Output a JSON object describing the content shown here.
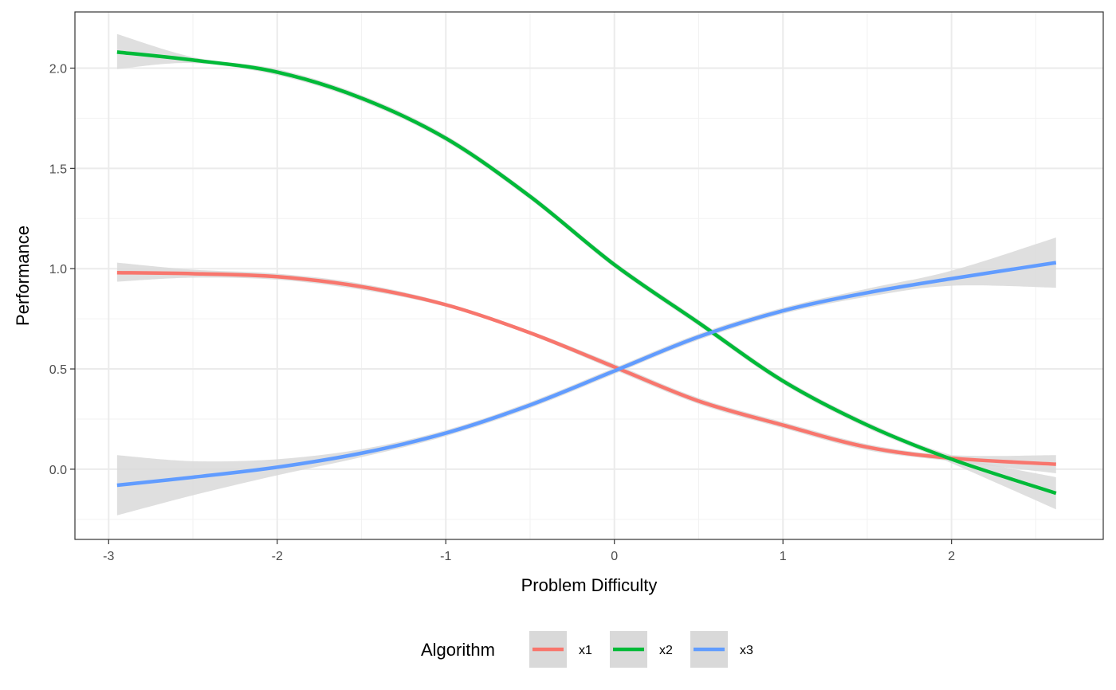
{
  "chart_data": {
    "type": "line",
    "title": "",
    "xlabel": "Problem Difficulty",
    "ylabel": "Performance",
    "xlim": [
      -3.2,
      2.9
    ],
    "ylim": [
      -0.35,
      2.28
    ],
    "x_ticks": [
      -3,
      -2,
      -1,
      0,
      1,
      2
    ],
    "x_tick_labels": [
      "-3",
      "-2",
      "-1",
      "0",
      "1",
      "2"
    ],
    "y_ticks": [
      0.0,
      0.5,
      1.0,
      1.5,
      2.0
    ],
    "y_tick_labels": [
      "0.0",
      "0.5",
      "1.0",
      "1.5",
      "2.0"
    ],
    "grid": true,
    "confidence_band_color": "#d9d9d9",
    "legend": {
      "title": "Algorithm",
      "position": "bottom"
    },
    "series": [
      {
        "name": "x1",
        "color": "#F8766D",
        "x": [
          -2.95,
          -2.5,
          -2.0,
          -1.5,
          -1.0,
          -0.5,
          0.0,
          0.5,
          1.0,
          1.5,
          2.0,
          2.62
        ],
        "y": [
          0.98,
          0.975,
          0.96,
          0.91,
          0.82,
          0.68,
          0.51,
          0.34,
          0.22,
          0.11,
          0.055,
          0.025
        ],
        "lower": [
          0.935,
          0.955,
          0.945,
          0.895,
          0.81,
          0.67,
          0.495,
          0.325,
          0.205,
          0.095,
          0.04,
          -0.02
        ],
        "upper": [
          1.03,
          0.995,
          0.975,
          0.925,
          0.83,
          0.69,
          0.525,
          0.355,
          0.235,
          0.125,
          0.07,
          0.07
        ]
      },
      {
        "name": "x2",
        "color": "#00BA38",
        "x": [
          -2.95,
          -2.5,
          -2.0,
          -1.5,
          -1.0,
          -0.5,
          0.0,
          0.5,
          1.0,
          1.5,
          2.0,
          2.62
        ],
        "y": [
          2.08,
          2.04,
          1.98,
          1.85,
          1.65,
          1.36,
          1.02,
          0.73,
          0.44,
          0.22,
          0.05,
          -0.12
        ],
        "lower": [
          1.995,
          2.025,
          1.965,
          1.835,
          1.635,
          1.345,
          1.005,
          0.715,
          0.425,
          0.205,
          0.03,
          -0.2
        ],
        "upper": [
          2.17,
          2.055,
          1.995,
          1.865,
          1.665,
          1.375,
          1.035,
          0.745,
          0.455,
          0.235,
          0.07,
          -0.04
        ]
      },
      {
        "name": "x3",
        "color": "#619CFF",
        "x": [
          -2.95,
          -2.5,
          -2.0,
          -1.5,
          -1.0,
          -0.5,
          0.0,
          0.5,
          1.0,
          1.5,
          2.0,
          2.62
        ],
        "y": [
          -0.08,
          -0.04,
          0.01,
          0.08,
          0.18,
          0.32,
          0.49,
          0.66,
          0.79,
          0.88,
          0.95,
          1.03
        ],
        "lower": [
          -0.23,
          -0.13,
          -0.03,
          0.06,
          0.165,
          0.305,
          0.475,
          0.645,
          0.775,
          0.86,
          0.915,
          0.905
        ],
        "upper": [
          0.07,
          0.04,
          0.05,
          0.1,
          0.195,
          0.335,
          0.505,
          0.675,
          0.805,
          0.9,
          0.99,
          1.155
        ]
      }
    ]
  }
}
